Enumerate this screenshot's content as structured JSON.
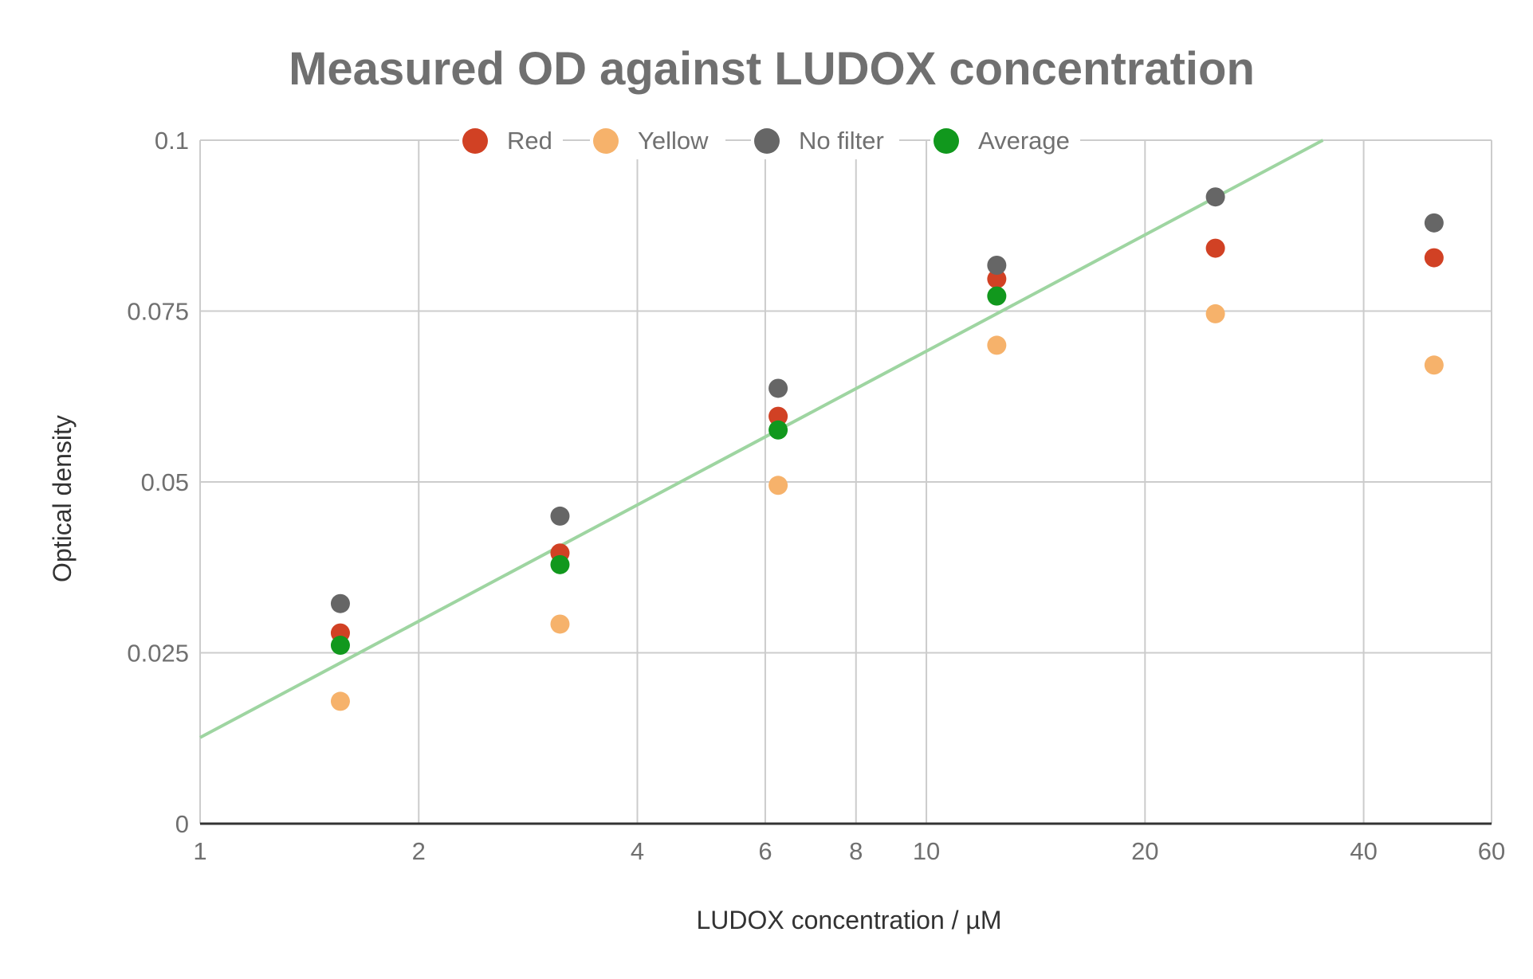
{
  "chart_data": {
    "type": "scatter",
    "title": "Measured OD against LUDOX concentration",
    "xlabel": "LUDOX concentration / µM",
    "ylabel": "Optical density",
    "x_scale": "log",
    "xlim": [
      1,
      60
    ],
    "ylim": [
      0,
      0.1
    ],
    "x_ticks": [
      1,
      2,
      4,
      6,
      8,
      10,
      20,
      40,
      60
    ],
    "y_ticks": [
      0,
      0.025,
      0.05,
      0.075,
      0.1
    ],
    "x_tick_labels": [
      "1",
      "2",
      "4",
      "6",
      "8",
      "10",
      "20",
      "40",
      "60"
    ],
    "y_tick_labels": [
      "0",
      "0.025",
      "0.05",
      "0.075",
      "0.1"
    ],
    "grid": true,
    "legend_position": "top",
    "series": [
      {
        "name": "Red",
        "color": "#d14124",
        "points": [
          {
            "x": 1.56,
            "y": 0.0279
          },
          {
            "x": 3.13,
            "y": 0.0396
          },
          {
            "x": 6.25,
            "y": 0.0596
          },
          {
            "x": 12.5,
            "y": 0.0797
          },
          {
            "x": 25,
            "y": 0.0842
          },
          {
            "x": 50,
            "y": 0.0828
          }
        ]
      },
      {
        "name": "Yellow",
        "color": "#f6b26b",
        "points": [
          {
            "x": 1.56,
            "y": 0.0179
          },
          {
            "x": 3.13,
            "y": 0.0292
          },
          {
            "x": 6.25,
            "y": 0.0495
          },
          {
            "x": 12.5,
            "y": 0.07
          },
          {
            "x": 25,
            "y": 0.0746
          },
          {
            "x": 50,
            "y": 0.0671
          }
        ]
      },
      {
        "name": "No filter",
        "color": "#666666",
        "points": [
          {
            "x": 1.56,
            "y": 0.0322
          },
          {
            "x": 3.13,
            "y": 0.045
          },
          {
            "x": 6.25,
            "y": 0.0637
          },
          {
            "x": 12.5,
            "y": 0.0817
          },
          {
            "x": 25,
            "y": 0.0917
          },
          {
            "x": 50,
            "y": 0.0879
          }
        ]
      },
      {
        "name": "Average",
        "color": "#11981d",
        "points": [
          {
            "x": 1.56,
            "y": 0.0261
          },
          {
            "x": 3.13,
            "y": 0.0379
          },
          {
            "x": 6.25,
            "y": 0.0576
          },
          {
            "x": 12.5,
            "y": 0.0772
          }
        ]
      }
    ],
    "trendline": {
      "color": "#9ed5a1",
      "x": [
        1,
        35.15
      ],
      "y": [
        0.0126,
        0.1
      ]
    }
  }
}
